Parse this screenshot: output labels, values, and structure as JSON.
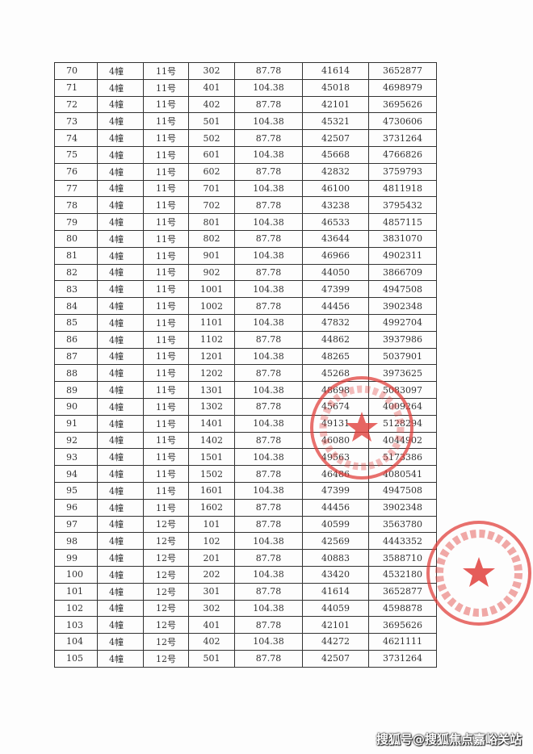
{
  "table": {
    "rows": [
      [
        "70",
        "4幢",
        "11号",
        "302",
        "87.78",
        "41614",
        "3652877"
      ],
      [
        "71",
        "4幢",
        "11号",
        "401",
        "104.38",
        "45018",
        "4698979"
      ],
      [
        "72",
        "4幢",
        "11号",
        "402",
        "87.78",
        "42101",
        "3695626"
      ],
      [
        "73",
        "4幢",
        "11号",
        "501",
        "104.38",
        "45321",
        "4730606"
      ],
      [
        "74",
        "4幢",
        "11号",
        "502",
        "87.78",
        "42507",
        "3731264"
      ],
      [
        "75",
        "4幢",
        "11号",
        "601",
        "104.38",
        "45668",
        "4766826"
      ],
      [
        "76",
        "4幢",
        "11号",
        "602",
        "87.78",
        "42832",
        "3759793"
      ],
      [
        "77",
        "4幢",
        "11号",
        "701",
        "104.38",
        "46100",
        "4811918"
      ],
      [
        "78",
        "4幢",
        "11号",
        "702",
        "87.78",
        "43238",
        "3795432"
      ],
      [
        "79",
        "4幢",
        "11号",
        "801",
        "104.38",
        "46533",
        "4857115"
      ],
      [
        "80",
        "4幢",
        "11号",
        "802",
        "87.78",
        "43644",
        "3831070"
      ],
      [
        "81",
        "4幢",
        "11号",
        "901",
        "104.38",
        "46966",
        "4902311"
      ],
      [
        "82",
        "4幢",
        "11号",
        "902",
        "87.78",
        "44050",
        "3866709"
      ],
      [
        "83",
        "4幢",
        "11号",
        "1001",
        "104.38",
        "47399",
        "4947508"
      ],
      [
        "84",
        "4幢",
        "11号",
        "1002",
        "87.78",
        "44456",
        "3902348"
      ],
      [
        "85",
        "4幢",
        "11号",
        "1101",
        "104.38",
        "47832",
        "4992704"
      ],
      [
        "86",
        "4幢",
        "11号",
        "1102",
        "87.78",
        "44862",
        "3937986"
      ],
      [
        "87",
        "4幢",
        "11号",
        "1201",
        "104.38",
        "48265",
        "5037901"
      ],
      [
        "88",
        "4幢",
        "11号",
        "1202",
        "87.78",
        "45268",
        "3973625"
      ],
      [
        "89",
        "4幢",
        "11号",
        "1301",
        "104.38",
        "48698",
        "5083097"
      ],
      [
        "90",
        "4幢",
        "11号",
        "1302",
        "87.78",
        "45674",
        "4009264"
      ],
      [
        "91",
        "4幢",
        "11号",
        "1401",
        "104.38",
        "49131",
        "5128294"
      ],
      [
        "92",
        "4幢",
        "11号",
        "1402",
        "87.78",
        "46080",
        "4044902"
      ],
      [
        "93",
        "4幢",
        "11号",
        "1501",
        "104.38",
        "49563",
        "5173386"
      ],
      [
        "94",
        "4幢",
        "11号",
        "1502",
        "87.78",
        "46486",
        "4080541"
      ],
      [
        "95",
        "4幢",
        "11号",
        "1601",
        "104.38",
        "47399",
        "4947508"
      ],
      [
        "96",
        "4幢",
        "11号",
        "1602",
        "87.78",
        "44456",
        "3902348"
      ],
      [
        "97",
        "4幢",
        "12号",
        "101",
        "87.78",
        "40599",
        "3563780"
      ],
      [
        "98",
        "4幢",
        "12号",
        "102",
        "104.38",
        "42569",
        "4443352"
      ],
      [
        "99",
        "4幢",
        "12号",
        "201",
        "87.78",
        "40883",
        "3588710"
      ],
      [
        "100",
        "4幢",
        "12号",
        "202",
        "104.38",
        "43420",
        "4532180"
      ],
      [
        "101",
        "4幢",
        "12号",
        "301",
        "87.78",
        "41614",
        "3652877"
      ],
      [
        "102",
        "4幢",
        "12号",
        "302",
        "104.38",
        "44059",
        "4598878"
      ],
      [
        "103",
        "4幢",
        "12号",
        "401",
        "87.78",
        "42101",
        "3695626"
      ],
      [
        "104",
        "4幢",
        "12号",
        "402",
        "104.38",
        "44272",
        "4621111"
      ],
      [
        "105",
        "4幢",
        "12号",
        "501",
        "87.78",
        "42507",
        "3731264"
      ]
    ]
  },
  "stamps": {
    "color": "#e0403c",
    "icon": "star-icon"
  },
  "watermark": "搜狐号@搜狐焦点嘉峪关站"
}
